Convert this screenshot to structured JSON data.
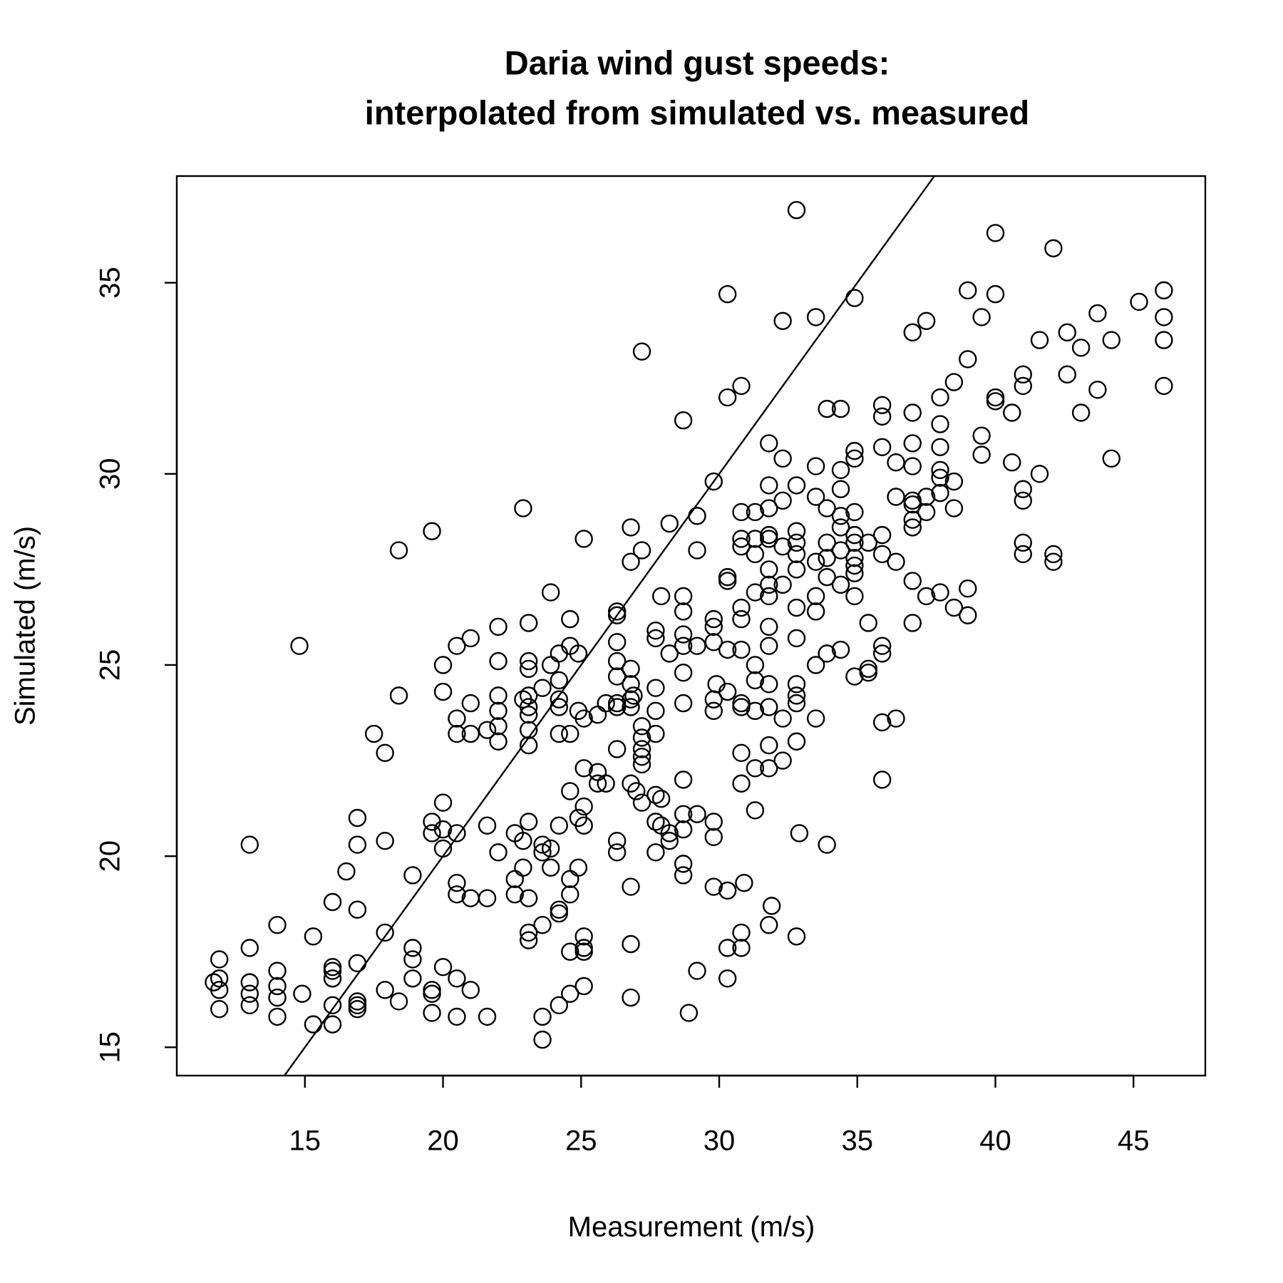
{
  "chart_data": {
    "type": "scatter",
    "title": [
      "Daria wind gust speeds:",
      "interpolated from simulated vs. measured"
    ],
    "x_label": "Measurement (m/s)",
    "y_label": "Simulated (m/s)",
    "xlim": [
      10.36,
      47.6
    ],
    "ylim": [
      14.26,
      37.79
    ],
    "xticks": [
      15,
      20,
      25,
      30,
      35,
      40,
      45
    ],
    "yticks": [
      15,
      20,
      25,
      30,
      35
    ],
    "identity_line": true,
    "color": "#000000",
    "x": [
      11.7,
      11.9,
      11.9,
      11.9,
      11.9,
      13.0,
      13.0,
      13.0,
      13.0,
      13.0,
      14.0,
      14.0,
      14.0,
      14.0,
      14.0,
      14.8,
      14.9,
      15.3,
      15.3,
      16.0,
      16.0,
      16.0,
      16.0,
      16.0,
      16.0,
      16.5,
      16.9,
      16.9,
      16.9,
      16.9,
      16.9,
      16.9,
      16.9,
      17.5,
      17.9,
      17.9,
      17.9,
      17.9,
      18.4,
      18.4,
      18.4,
      18.9,
      18.9,
      18.9,
      18.9,
      19.6,
      19.6,
      19.6,
      19.6,
      19.6,
      19.6,
      20.0,
      20.0,
      20.0,
      20.0,
      20.0,
      20.0,
      20.5,
      20.5,
      20.5,
      20.5,
      20.5,
      20.5,
      20.5,
      20.5,
      21.0,
      21.0,
      21.0,
      21.0,
      21.0,
      21.6,
      21.6,
      21.6,
      21.6,
      22.0,
      22.0,
      22.0,
      22.0,
      22.0,
      22.0,
      22.0,
      22.6,
      22.6,
      22.6,
      22.9,
      22.9,
      22.9,
      22.9,
      23.1,
      23.1,
      23.1,
      23.1,
      23.1,
      23.1,
      23.1,
      23.1,
      23.1,
      23.1,
      23.1,
      23.1,
      23.6,
      23.6,
      23.6,
      23.6,
      23.6,
      23.6,
      23.9,
      23.9,
      23.9,
      23.9,
      24.2,
      24.2,
      24.2,
      24.2,
      24.2,
      24.2,
      24.2,
      24.2,
      24.2,
      24.6,
      24.6,
      24.6,
      24.6,
      24.6,
      24.6,
      24.6,
      24.6,
      24.9,
      24.9,
      24.9,
      24.9,
      25.1,
      25.1,
      25.1,
      25.1,
      25.1,
      25.1,
      25.1,
      25.1,
      25.1,
      25.6,
      25.6,
      25.6,
      25.9,
      25.9,
      26.3,
      26.3,
      26.3,
      26.3,
      26.3,
      26.3,
      26.3,
      26.3,
      26.3,
      26.3,
      26.8,
      26.8,
      26.8,
      26.8,
      26.8,
      26.8,
      26.8,
      26.8,
      26.8,
      26.8,
      26.9,
      27.2,
      27.2,
      27.2,
      27.2,
      27.2,
      27.2,
      27.2,
      27.2,
      27.0,
      27.7,
      27.7,
      27.7,
      27.7,
      27.7,
      27.7,
      27.7,
      27.7,
      27.9,
      27.9,
      27.9,
      28.2,
      28.2,
      28.2,
      28.2,
      28.7,
      28.7,
      28.7,
      28.7,
      28.7,
      28.7,
      28.7,
      28.7,
      28.7,
      28.7,
      28.7,
      28.7,
      28.9,
      29.2,
      29.2,
      29.2,
      29.2,
      29.2,
      29.8,
      29.8,
      29.8,
      29.8,
      29.8,
      29.8,
      29.9,
      29.8,
      29.8,
      29.8,
      30.3,
      30.3,
      30.3,
      30.3,
      30.3,
      30.3,
      30.3,
      30.3,
      30.3,
      30.8,
      30.8,
      30.8,
      30.8,
      30.8,
      30.8,
      30.8,
      30.8,
      30.8,
      30.8,
      30.8,
      30.8,
      30.8,
      30.9,
      31.3,
      31.3,
      31.3,
      31.3,
      31.3,
      31.3,
      31.3,
      31.3,
      31.3,
      31.8,
      31.8,
      31.8,
      31.8,
      31.8,
      31.8,
      31.8,
      31.8,
      31.8,
      31.8,
      31.8,
      31.8,
      31.8,
      31.8,
      31.9,
      31.8,
      32.3,
      32.3,
      32.3,
      32.3,
      32.3,
      32.3,
      32.3,
      32.8,
      32.8,
      32.8,
      32.8,
      32.8,
      32.8,
      32.8,
      32.8,
      32.8,
      32.8,
      32.8,
      32.8,
      32.9,
      32.8,
      33.5,
      33.5,
      33.5,
      33.5,
      33.5,
      33.5,
      33.5,
      33.5,
      33.9,
      33.9,
      33.9,
      33.9,
      33.9,
      33.9,
      33.9,
      34.4,
      34.4,
      34.4,
      34.4,
      34.4,
      34.4,
      34.4,
      34.4,
      34.9,
      34.9,
      34.9,
      34.9,
      34.9,
      34.9,
      34.9,
      34.9,
      34.9,
      34.9,
      34.9,
      35.4,
      35.4,
      35.4,
      35.4,
      35.9,
      35.9,
      35.9,
      35.9,
      35.9,
      35.9,
      35.9,
      35.9,
      35.9,
      36.4,
      36.4,
      36.4,
      36.4,
      37.0,
      37.0,
      37.0,
      37.0,
      37.0,
      37.0,
      37.0,
      37.0,
      37.0,
      37.0,
      37.5,
      37.5,
      37.5,
      37.5,
      38.0,
      38.0,
      38.0,
      38.0,
      38.0,
      38.0,
      38.0,
      38.5,
      38.5,
      38.5,
      38.5,
      39.0,
      39.0,
      39.0,
      39.0,
      39.5,
      39.5,
      39.5,
      40.0,
      40.0,
      40.0,
      40.0,
      40.6,
      40.6,
      41.0,
      41.0,
      41.0,
      41.0,
      41.0,
      41.0,
      41.6,
      41.6,
      42.1,
      42.1,
      42.1,
      42.6,
      42.6,
      43.1,
      43.1,
      43.7,
      43.7,
      44.2,
      44.2,
      45.2,
      46.1,
      46.1,
      46.1,
      46.1
    ],
    "values": [
      16.7,
      17.3,
      16.8,
      16.5,
      16.0,
      20.3,
      17.6,
      16.7,
      16.4,
      16.1,
      18.2,
      17.0,
      16.6,
      16.3,
      15.8,
      25.5,
      16.4,
      17.9,
      15.6,
      18.8,
      17.1,
      17.0,
      16.8,
      16.1,
      15.6,
      19.6,
      21.0,
      20.3,
      18.6,
      17.2,
      16.2,
      16.1,
      16.0,
      23.2,
      22.7,
      20.4,
      18.0,
      16.5,
      28.0,
      24.2,
      16.2,
      19.5,
      17.6,
      17.3,
      16.8,
      28.5,
      20.9,
      20.6,
      16.5,
      16.4,
      15.9,
      25.0,
      24.3,
      21.4,
      20.7,
      20.2,
      17.1,
      25.5,
      23.6,
      23.2,
      20.6,
      19.3,
      19.0,
      16.8,
      15.8,
      25.7,
      24.0,
      23.2,
      18.9,
      16.5,
      23.3,
      20.8,
      18.9,
      15.8,
      26.0,
      25.1,
      24.2,
      23.8,
      23.4,
      23.0,
      20.1,
      19.4,
      19.0,
      20.6,
      29.1,
      24.1,
      19.7,
      20.4,
      26.1,
      25.1,
      24.9,
      24.2,
      23.9,
      23.7,
      23.3,
      22.9,
      20.9,
      18.9,
      18.0,
      17.8,
      20.3,
      24.4,
      20.1,
      18.2,
      15.8,
      15.2,
      26.9,
      25.0,
      20.2,
      19.7,
      25.3,
      24.6,
      24.1,
      23.9,
      23.2,
      20.8,
      18.6,
      18.5,
      16.1,
      26.2,
      25.5,
      23.2,
      21.7,
      19.4,
      19.0,
      17.5,
      16.4,
      25.3,
      23.8,
      21.0,
      19.7,
      28.3,
      22.3,
      21.3,
      20.8,
      17.9,
      17.6,
      17.5,
      16.6,
      23.6,
      23.7,
      22.2,
      21.9,
      21.9,
      24.0,
      26.4,
      26.3,
      25.6,
      25.1,
      24.7,
      24.0,
      23.9,
      22.8,
      20.4,
      20.1,
      28.6,
      27.7,
      24.9,
      24.5,
      24.1,
      23.9,
      21.9,
      19.2,
      17.7,
      16.3,
      24.2,
      33.2,
      28.0,
      23.4,
      23.1,
      22.8,
      22.6,
      22.4,
      21.4,
      21.7,
      25.9,
      25.7,
      24.4,
      23.8,
      23.2,
      21.6,
      20.9,
      20.1,
      26.8,
      21.5,
      20.8,
      28.7,
      25.3,
      20.4,
      20.6,
      31.4,
      26.8,
      26.4,
      25.8,
      25.5,
      24.8,
      24.0,
      22.0,
      21.1,
      20.7,
      19.8,
      19.5,
      15.9,
      28.9,
      28.0,
      25.5,
      21.1,
      17.0,
      29.8,
      26.2,
      26.0,
      25.6,
      24.1,
      23.8,
      24.5,
      20.9,
      20.5,
      19.2,
      34.7,
      32.0,
      27.3,
      27.2,
      25.4,
      24.3,
      19.1,
      17.6,
      16.8,
      32.3,
      29.0,
      28.3,
      28.1,
      26.5,
      26.2,
      25.4,
      24.0,
      23.9,
      22.7,
      21.9,
      18.0,
      17.6,
      19.3,
      29.0,
      28.3,
      27.9,
      26.9,
      25.0,
      24.6,
      23.8,
      22.3,
      21.2,
      30.8,
      29.7,
      29.1,
      28.4,
      28.3,
      27.5,
      27.1,
      26.8,
      26.0,
      25.5,
      24.5,
      23.9,
      22.9,
      22.3,
      18.7,
      18.2,
      34.0,
      30.4,
      29.3,
      28.1,
      27.1,
      23.6,
      22.5,
      36.9,
      29.7,
      28.5,
      28.2,
      27.9,
      27.5,
      26.5,
      25.7,
      24.5,
      24.2,
      24.0,
      23.0,
      20.6,
      17.9,
      34.1,
      30.2,
      29.4,
      27.7,
      26.8,
      26.4,
      25.0,
      23.6,
      31.7,
      29.1,
      28.2,
      27.8,
      27.3,
      25.3,
      20.3,
      31.7,
      30.1,
      29.6,
      28.9,
      28.6,
      28.0,
      27.1,
      25.4,
      34.6,
      30.6,
      30.4,
      29.0,
      28.4,
      28.2,
      27.8,
      27.6,
      27.4,
      26.8,
      24.7,
      28.2,
      26.1,
      24.9,
      24.8,
      31.8,
      31.5,
      30.7,
      28.4,
      27.9,
      25.5,
      25.3,
      23.5,
      22.0,
      30.3,
      29.4,
      27.7,
      23.6,
      33.7,
      31.6,
      30.8,
      30.2,
      29.3,
      29.2,
      28.8,
      28.6,
      27.2,
      26.1,
      34.0,
      29.4,
      29.0,
      26.8,
      32.0,
      31.3,
      30.7,
      30.1,
      29.9,
      29.5,
      26.9,
      32.4,
      29.8,
      29.1,
      26.5,
      34.8,
      33.0,
      27.0,
      26.3,
      34.1,
      31.0,
      30.5,
      36.3,
      34.7,
      32.0,
      31.9,
      31.6,
      30.3,
      32.6,
      32.3,
      29.6,
      29.3,
      28.2,
      27.9,
      33.5,
      30.0,
      35.9,
      27.9,
      27.7,
      33.7,
      32.6,
      33.3,
      31.6,
      34.2,
      32.2,
      33.5,
      30.4,
      34.5,
      34.8,
      34.1,
      33.5,
      32.3
    ]
  }
}
